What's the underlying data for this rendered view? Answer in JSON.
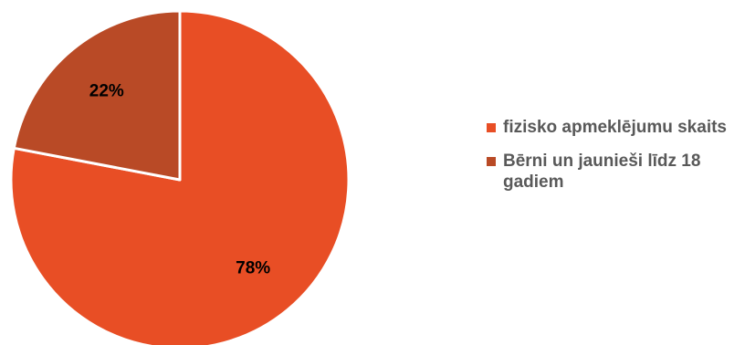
{
  "chart_data": {
    "type": "pie",
    "categories": [
      "fizisko apmeklējumu skaits",
      "Bērni un jaunieši līdz 18 gadiem"
    ],
    "values": [
      78,
      22
    ],
    "data_labels": [
      "78%",
      "22%"
    ],
    "colors": [
      "#E84E25",
      "#B94A26"
    ],
    "slice_border_color": "#ffffff",
    "start_angle_deg": 0,
    "direction": "clockwise",
    "legend_position": "right",
    "title": ""
  }
}
